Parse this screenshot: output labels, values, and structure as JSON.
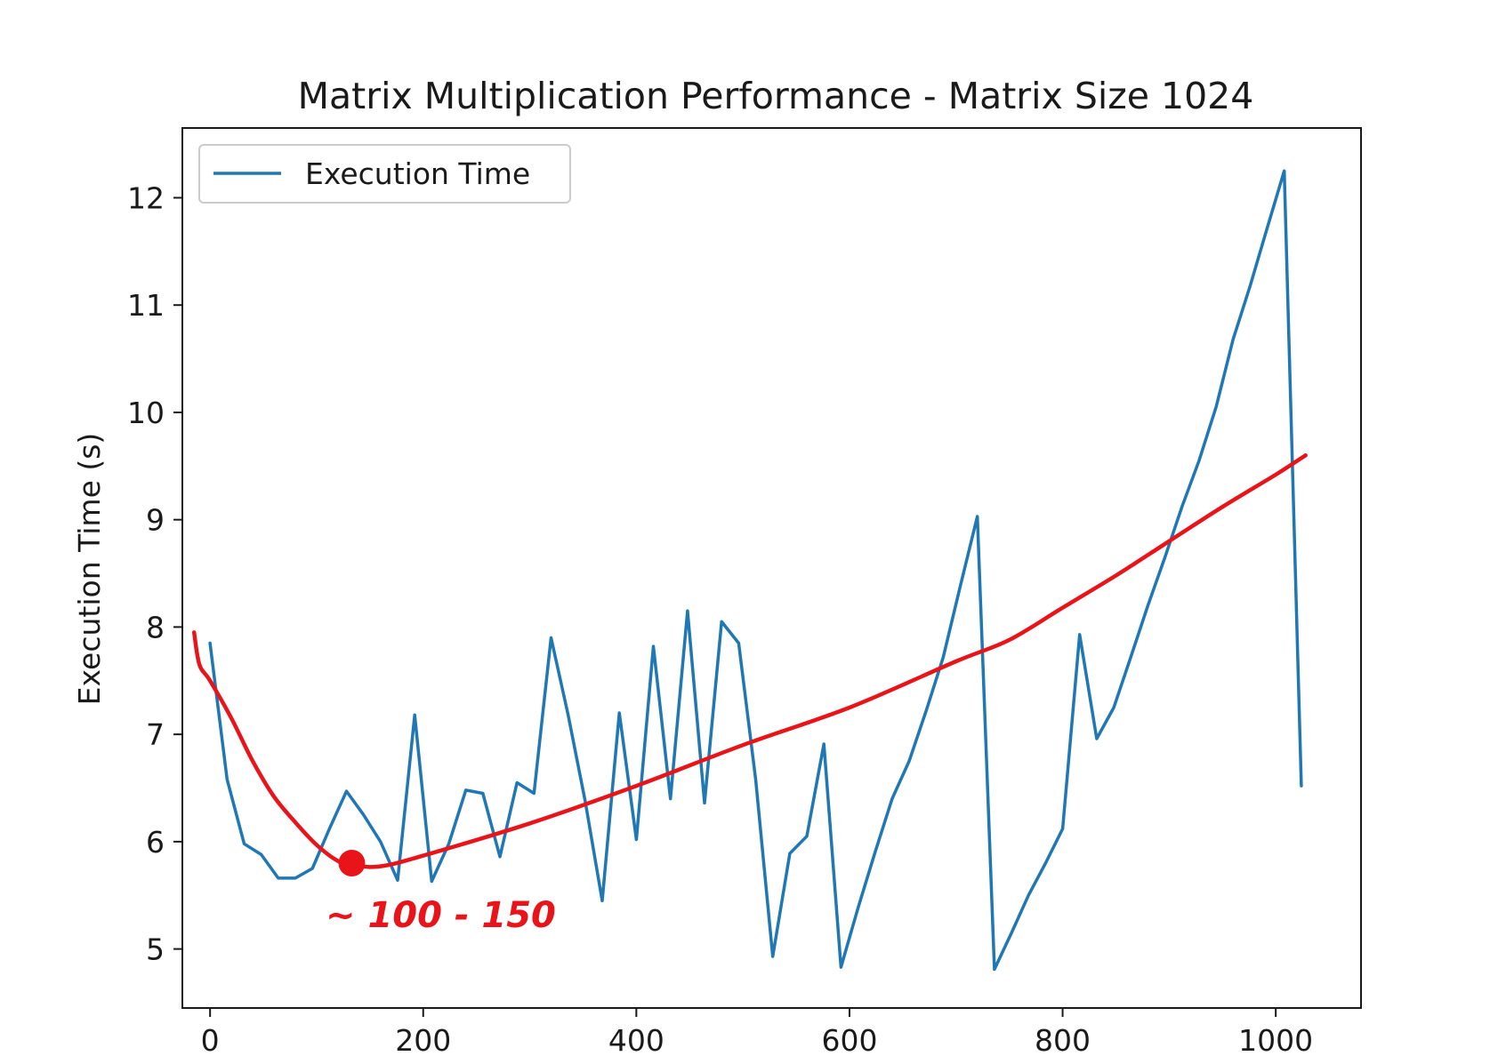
{
  "chart_data": {
    "type": "line",
    "title": "Matrix Multiplication Performance - Matrix Size 1024",
    "xlabel": "",
    "ylabel": "Execution Time (s)",
    "xlim": [
      -26,
      1080
    ],
    "ylim": [
      4.45,
      12.65
    ],
    "xticks": [
      0,
      200,
      400,
      600,
      800,
      1000
    ],
    "yticks": [
      5,
      6,
      7,
      8,
      9,
      10,
      11,
      12
    ],
    "grid": false,
    "legend": "top-left",
    "series": [
      {
        "name": "Execution Time",
        "color": "#1f77b4",
        "x": [
          0,
          16,
          32,
          48,
          64,
          80,
          96,
          112,
          128,
          144,
          160,
          176,
          192,
          208,
          224,
          240,
          256,
          272,
          288,
          304,
          320,
          336,
          352,
          368,
          384,
          400,
          416,
          432,
          448,
          464,
          480,
          496,
          512,
          528,
          544,
          560,
          576,
          592,
          608,
          624,
          640,
          656,
          672,
          688,
          704,
          720,
          736,
          752,
          768,
          784,
          800,
          816,
          832,
          848,
          864,
          880,
          896,
          912,
          928,
          944,
          960,
          976,
          992,
          1008,
          1024
        ],
        "y": [
          7.85,
          6.58,
          5.98,
          5.88,
          5.66,
          5.66,
          5.75,
          6.12,
          6.47,
          6.25,
          6.0,
          5.64,
          7.18,
          5.63,
          5.98,
          6.48,
          6.45,
          5.86,
          6.55,
          6.45,
          7.9,
          7.18,
          6.38,
          5.45,
          7.2,
          6.02,
          7.82,
          6.4,
          8.15,
          6.36,
          8.05,
          7.85,
          6.58,
          4.93,
          5.89,
          6.05,
          6.91,
          4.83,
          5.38,
          5.9,
          6.4,
          6.75,
          7.22,
          7.72,
          8.38,
          9.03,
          4.81,
          5.15,
          5.5,
          5.8,
          6.12,
          7.93,
          6.96,
          7.25,
          7.72,
          8.2,
          8.65,
          9.12,
          9.55,
          10.05,
          10.68,
          11.18,
          11.72,
          12.25,
          6.52
        ]
      }
    ],
    "annotations": [
      {
        "type": "trend-curve",
        "color": "#e8141a",
        "x": [
          -15,
          -10,
          0,
          20,
          40,
          60,
          80,
          100,
          120,
          135,
          160,
          200,
          300,
          400,
          500,
          600,
          700,
          750,
          800,
          850,
          900,
          950,
          1000,
          1028
        ],
        "y": [
          7.95,
          7.65,
          7.5,
          7.15,
          6.75,
          6.42,
          6.18,
          5.97,
          5.82,
          5.78,
          5.77,
          5.87,
          6.17,
          6.52,
          6.9,
          7.25,
          7.68,
          7.88,
          8.18,
          8.48,
          8.8,
          9.12,
          9.42,
          9.6
        ]
      },
      {
        "type": "marker",
        "color": "#e8141a",
        "x": 133,
        "y": 5.8,
        "label": "~ 100 - 150"
      }
    ]
  }
}
